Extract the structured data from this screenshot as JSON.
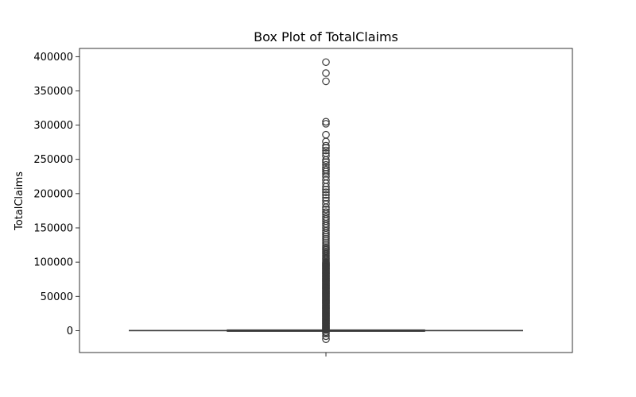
{
  "chart_data": {
    "type": "box",
    "title": "Box Plot of TotalClaims",
    "xlabel": "",
    "ylabel": "TotalClaims",
    "ylim": [
      -32000,
      412000
    ],
    "yticks": [
      0,
      50000,
      100000,
      150000,
      200000,
      250000,
      300000,
      350000,
      400000
    ],
    "grid": false,
    "legend": "none",
    "colors": {
      "box_edge": "#3a3a3a",
      "outlier_edge": "#3a3a3a",
      "axis": "#000000"
    },
    "box": {
      "whisker_low": 0,
      "q1": 0,
      "median": 0,
      "q3": 0,
      "whisker_high": 0
    },
    "outliers": [
      -12500,
      -8000,
      -4000,
      -2000,
      1000,
      2000,
      3000,
      4000,
      5000,
      6000,
      7000,
      8000,
      9000,
      10000,
      11000,
      12000,
      13000,
      14000,
      15000,
      16000,
      17000,
      18000,
      19000,
      20000,
      21000,
      22000,
      23000,
      24000,
      25000,
      26000,
      27000,
      28000,
      29000,
      30000,
      31000,
      32000,
      33000,
      34000,
      35000,
      36000,
      37000,
      38000,
      39000,
      40000,
      41000,
      42000,
      43000,
      44000,
      45000,
      46000,
      47000,
      48000,
      49000,
      50000,
      51000,
      52000,
      53000,
      54000,
      55000,
      56000,
      57000,
      58000,
      59000,
      60000,
      61000,
      62000,
      63000,
      64000,
      65000,
      66000,
      67000,
      68000,
      69000,
      70000,
      71000,
      72000,
      73000,
      74000,
      75000,
      76000,
      77000,
      78000,
      79000,
      80000,
      81000,
      82000,
      83000,
      84000,
      85000,
      86000,
      87000,
      88000,
      89000,
      90000,
      91000,
      92000,
      93000,
      94000,
      95000,
      96000,
      97000,
      98000,
      99000,
      100000,
      102000,
      104000,
      106000,
      108000,
      110000,
      112000,
      114000,
      116000,
      118000,
      120000,
      122000,
      125000,
      128000,
      131000,
      134000,
      137000,
      140000,
      143000,
      146000,
      150000,
      153000,
      156000,
      160000,
      163000,
      166000,
      170000,
      173000,
      177000,
      180000,
      185000,
      190000,
      194000,
      198000,
      202000,
      206000,
      210000,
      215000,
      220000,
      225000,
      229000,
      232000,
      235000,
      238000,
      242000,
      246000,
      249000,
      255000,
      259000,
      263000,
      267000,
      270000,
      276000,
      286000,
      302000,
      305000,
      364000,
      376000,
      392000
    ]
  }
}
